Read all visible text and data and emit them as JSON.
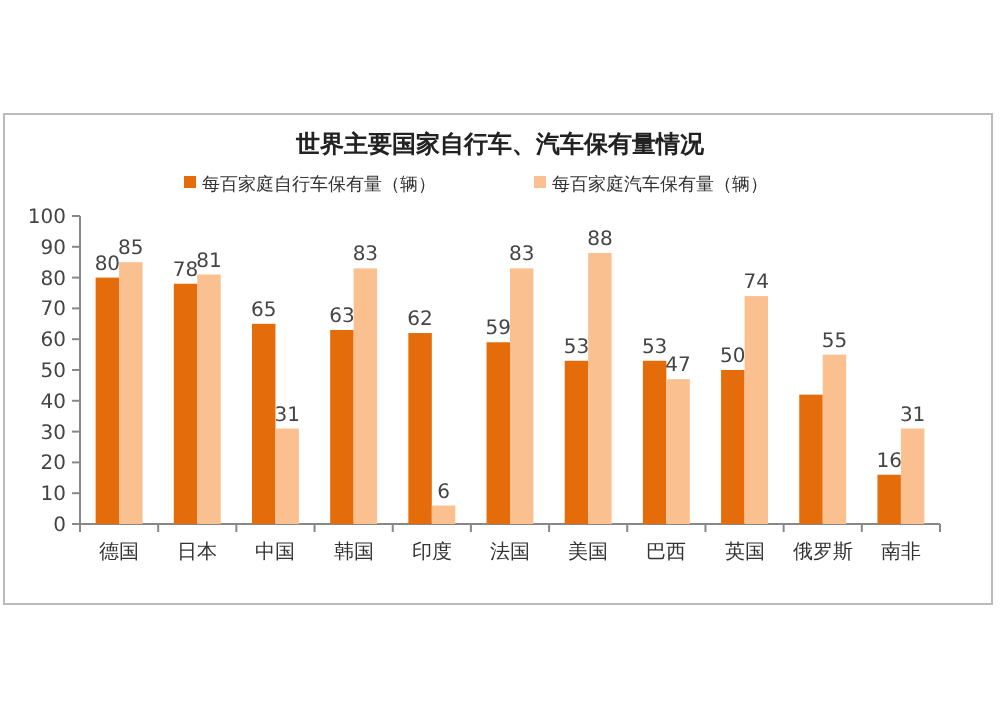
{
  "chart_data": {
    "type": "bar",
    "title": "世界主要国家自行车、汽车保有量情况",
    "categories": [
      "德国",
      "日本",
      "中国",
      "韩国",
      "印度",
      "法国",
      "美国",
      "巴西",
      "英国",
      "俄罗斯",
      "南非"
    ],
    "series": [
      {
        "name": "每百家庭自行车保有量（辆）",
        "color": "#e46c0a",
        "values": [
          80,
          78,
          65,
          63,
          62,
          59,
          53,
          53,
          50,
          42,
          16
        ],
        "value_labels": [
          "80",
          "78",
          "65",
          "63",
          "62",
          "59",
          "53",
          "53",
          "50",
          null,
          "16"
        ]
      },
      {
        "name": "每百家庭汽车保有量（辆）",
        "color": "#fac090",
        "values": [
          85,
          81,
          31,
          83,
          6,
          83,
          88,
          47,
          74,
          55,
          31
        ],
        "value_labels": [
          "85",
          "81",
          "31",
          "83",
          "6",
          "83",
          "88",
          "47",
          "74",
          "55",
          "31"
        ]
      }
    ],
    "ylim": [
      0,
      100
    ],
    "yticks": [
      0,
      10,
      20,
      30,
      40,
      50,
      60,
      70,
      80,
      90,
      100
    ],
    "legend": "top",
    "grid": false
  }
}
